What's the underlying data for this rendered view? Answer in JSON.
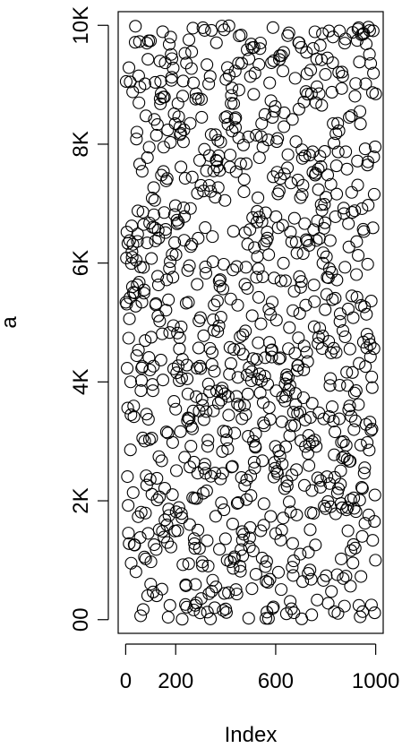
{
  "chart_data": {
    "type": "scatter",
    "title": "",
    "xlabel": "Index",
    "ylabel": "a",
    "xlim": [
      -30,
      1030
    ],
    "ylim": [
      -230,
      10230
    ],
    "x_ticks": [
      0,
      200,
      600,
      1000
    ],
    "x_tick_labels": [
      "0",
      "200",
      "600",
      "1000"
    ],
    "y_ticks": [
      0,
      2000,
      4000,
      6000,
      8000,
      10000
    ],
    "y_tick_labels": [
      "00",
      "2K",
      "4K",
      "6K",
      "8K",
      "10K"
    ],
    "grid": false,
    "legend": "none",
    "marker": "open-circle",
    "point_color": "#000000",
    "series": [
      {
        "generator": "uniform-random",
        "n": 1000,
        "x": "index 1..1000",
        "y_range": [
          0,
          10000
        ]
      }
    ]
  }
}
